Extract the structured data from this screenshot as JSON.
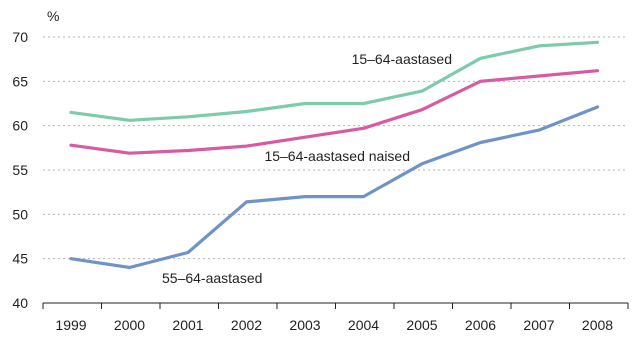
{
  "chart_data": {
    "type": "line",
    "ylabel": "%",
    "ylim": [
      40,
      70
    ],
    "yticks": [
      40,
      45,
      50,
      55,
      60,
      65,
      70
    ],
    "x": [
      "1999",
      "2000",
      "2001",
      "2002",
      "2003",
      "2004",
      "2005",
      "2006",
      "2007",
      "2008"
    ],
    "grid": true,
    "series": [
      {
        "name": "15–64-aastased",
        "color": "#7dcbab",
        "values": [
          61.5,
          60.6,
          61.0,
          61.6,
          62.5,
          62.5,
          63.9,
          67.6,
          69.0,
          69.4
        ]
      },
      {
        "name": "15–64-aastased naised",
        "color": "#d75ba3",
        "values": [
          57.8,
          56.9,
          57.2,
          57.7,
          58.7,
          59.7,
          61.8,
          65.0,
          65.6,
          66.2
        ]
      },
      {
        "name": "55–64-aastased",
        "color": "#6f92c7",
        "values": [
          45.0,
          44.0,
          45.7,
          51.4,
          52.0,
          52.0,
          55.7,
          58.1,
          59.5,
          62.1
        ]
      }
    ]
  }
}
